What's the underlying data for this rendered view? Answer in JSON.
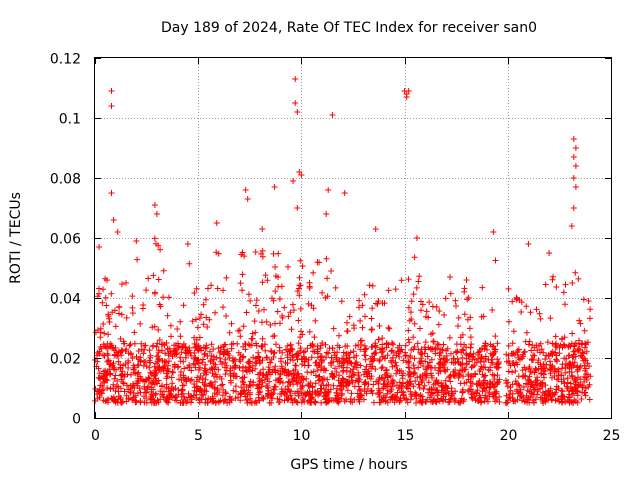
{
  "chart_data": {
    "type": "scatter",
    "title": "Day 189 of 2024, Rate Of TEC Index for receiver san0",
    "xlabel": "GPS time / hours",
    "ylabel": "ROTI / TECUs",
    "xlim": [
      0,
      25
    ],
    "ylim": [
      0,
      0.12
    ],
    "xticks": [
      0,
      5,
      10,
      15,
      20,
      25
    ],
    "yticks": [
      0,
      0.02,
      0.04,
      0.06,
      0.08,
      0.1,
      0.12
    ],
    "xtick_labels": [
      "0",
      "5",
      "10",
      "15",
      "20",
      "25"
    ],
    "ytick_labels": [
      "0",
      "0.02",
      "0.04",
      "0.06",
      "0.08",
      "0.1",
      "0.12"
    ],
    "grid": true,
    "marker": "+",
    "color": "#ff0000",
    "x_data_range": [
      0,
      24
    ],
    "data_gap_hours": [
      19.6,
      19.9
    ],
    "baseline_band": [
      0.005,
      0.025
    ],
    "outliers": [
      {
        "x": 0.8,
        "y": 0.109
      },
      {
        "x": 0.8,
        "y": 0.104
      },
      {
        "x": 0.8,
        "y": 0.075
      },
      {
        "x": 0.9,
        "y": 0.066
      },
      {
        "x": 2.9,
        "y": 0.071
      },
      {
        "x": 3.0,
        "y": 0.068
      },
      {
        "x": 5.9,
        "y": 0.065
      },
      {
        "x": 7.3,
        "y": 0.076
      },
      {
        "x": 7.4,
        "y": 0.073
      },
      {
        "x": 8.1,
        "y": 0.063
      },
      {
        "x": 8.7,
        "y": 0.077
      },
      {
        "x": 9.7,
        "y": 0.113
      },
      {
        "x": 9.7,
        "y": 0.105
      },
      {
        "x": 9.8,
        "y": 0.102
      },
      {
        "x": 9.6,
        "y": 0.079
      },
      {
        "x": 9.9,
        "y": 0.082
      },
      {
        "x": 10.0,
        "y": 0.081
      },
      {
        "x": 9.8,
        "y": 0.07
      },
      {
        "x": 11.5,
        "y": 0.101
      },
      {
        "x": 11.3,
        "y": 0.076
      },
      {
        "x": 11.2,
        "y": 0.068
      },
      {
        "x": 12.1,
        "y": 0.075
      },
      {
        "x": 13.6,
        "y": 0.063
      },
      {
        "x": 15.0,
        "y": 0.109
      },
      {
        "x": 15.1,
        "y": 0.108
      },
      {
        "x": 15.2,
        "y": 0.109
      },
      {
        "x": 15.1,
        "y": 0.107
      },
      {
        "x": 15.6,
        "y": 0.06
      },
      {
        "x": 19.3,
        "y": 0.062
      },
      {
        "x": 21.0,
        "y": 0.058
      },
      {
        "x": 23.2,
        "y": 0.093
      },
      {
        "x": 23.3,
        "y": 0.09
      },
      {
        "x": 23.2,
        "y": 0.087
      },
      {
        "x": 23.3,
        "y": 0.084
      },
      {
        "x": 23.2,
        "y": 0.08
      },
      {
        "x": 23.3,
        "y": 0.077
      },
      {
        "x": 23.2,
        "y": 0.07
      },
      {
        "x": 23.1,
        "y": 0.064
      },
      {
        "x": 22.0,
        "y": 0.055
      },
      {
        "x": 18.0,
        "y": 0.046
      },
      {
        "x": 17.2,
        "y": 0.047
      },
      {
        "x": 4.5,
        "y": 0.058
      },
      {
        "x": 1.1,
        "y": 0.062
      },
      {
        "x": 2.0,
        "y": 0.059
      },
      {
        "x": 0.2,
        "y": 0.057
      }
    ],
    "envelope": [
      {
        "x": 0.0,
        "y": 0.05
      },
      {
        "x": 0.5,
        "y": 0.048
      },
      {
        "x": 1.0,
        "y": 0.06
      },
      {
        "x": 1.5,
        "y": 0.045
      },
      {
        "x": 2.0,
        "y": 0.058
      },
      {
        "x": 2.5,
        "y": 0.052
      },
      {
        "x": 3.0,
        "y": 0.062
      },
      {
        "x": 3.5,
        "y": 0.045
      },
      {
        "x": 4.0,
        "y": 0.04
      },
      {
        "x": 4.5,
        "y": 0.055
      },
      {
        "x": 5.0,
        "y": 0.042
      },
      {
        "x": 5.5,
        "y": 0.045
      },
      {
        "x": 6.0,
        "y": 0.06
      },
      {
        "x": 6.5,
        "y": 0.045
      },
      {
        "x": 7.0,
        "y": 0.055
      },
      {
        "x": 7.5,
        "y": 0.06
      },
      {
        "x": 8.0,
        "y": 0.055
      },
      {
        "x": 8.5,
        "y": 0.06
      },
      {
        "x": 9.0,
        "y": 0.058
      },
      {
        "x": 9.5,
        "y": 0.065
      },
      {
        "x": 10.0,
        "y": 0.058
      },
      {
        "x": 10.5,
        "y": 0.05
      },
      {
        "x": 11.0,
        "y": 0.06
      },
      {
        "x": 11.5,
        "y": 0.055
      },
      {
        "x": 12.0,
        "y": 0.048
      },
      {
        "x": 12.5,
        "y": 0.04
      },
      {
        "x": 13.0,
        "y": 0.045
      },
      {
        "x": 13.5,
        "y": 0.055
      },
      {
        "x": 14.0,
        "y": 0.045
      },
      {
        "x": 14.5,
        "y": 0.05
      },
      {
        "x": 15.0,
        "y": 0.045
      },
      {
        "x": 15.5,
        "y": 0.055
      },
      {
        "x": 16.0,
        "y": 0.042
      },
      {
        "x": 16.5,
        "y": 0.04
      },
      {
        "x": 17.0,
        "y": 0.044
      },
      {
        "x": 17.5,
        "y": 0.04
      },
      {
        "x": 18.0,
        "y": 0.044
      },
      {
        "x": 18.5,
        "y": 0.04
      },
      {
        "x": 19.0,
        "y": 0.048
      },
      {
        "x": 19.5,
        "y": 0.055
      },
      {
        "x": 20.0,
        "y": 0.046
      },
      {
        "x": 20.5,
        "y": 0.04
      },
      {
        "x": 21.0,
        "y": 0.04
      },
      {
        "x": 21.5,
        "y": 0.045
      },
      {
        "x": 22.0,
        "y": 0.05
      },
      {
        "x": 22.5,
        "y": 0.045
      },
      {
        "x": 23.0,
        "y": 0.055
      },
      {
        "x": 23.5,
        "y": 0.045
      },
      {
        "x": 24.0,
        "y": 0.046
      }
    ]
  }
}
